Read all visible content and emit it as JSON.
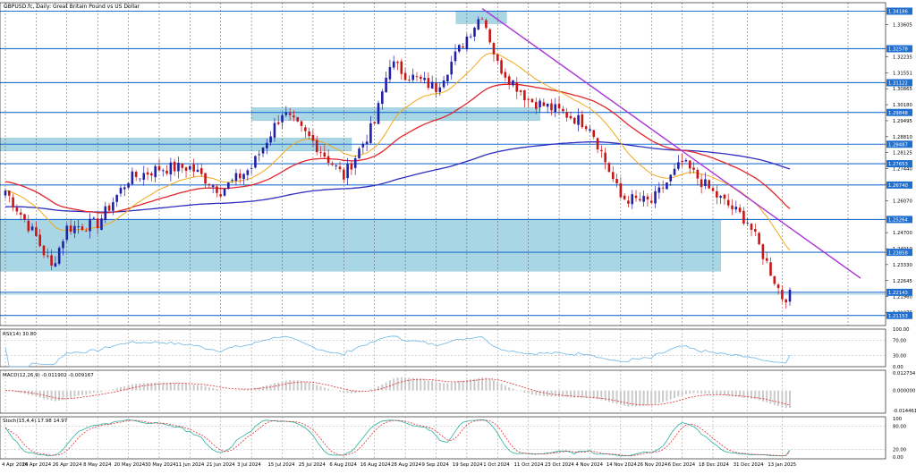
{
  "chart_data": {
    "type": "candlestick",
    "title": "GBPUSD.fc, Daily:  Great Britain Pound vs US Dollar",
    "colors": {
      "bull": "#1f1fa8",
      "bear": "#c81414",
      "zone": "#a9d6e5",
      "hline": "#1f6fd1",
      "ema20": "#f2a81b",
      "ema50": "#e0262b",
      "ema200": "#2d2dbf",
      "trendline": "#a833d6",
      "rsi": "#6fb7e6",
      "macd_hist": "#c9c9c9",
      "macd_signal": "#e03030",
      "stoch_k": "#2ab0a0",
      "stoch_d": "#e03030"
    },
    "y_axis": {
      "ylim": [
        1.2072,
        1.3455
      ],
      "tick_labels": [
        "1.33605",
        "1.32235",
        "1.31551",
        "1.30865",
        "1.30180",
        "1.29495",
        "1.28810",
        "1.28125",
        "1.27440",
        "1.26770",
        "1.26070",
        "1.24700",
        "1.24010",
        "1.23330",
        "1.22645",
        "1.21960",
        "1.21275"
      ]
    },
    "price_labels": [
      "1.34186",
      "1.32578",
      "1.31122",
      "1.29848",
      "1.28487",
      "1.27653",
      "1.26740",
      "1.25264",
      "1.23858",
      "1.22143",
      "1.21153"
    ],
    "x_axis": {
      "tick_labels": [
        "4 Apr 2024",
        "16 Apr 2024",
        "26 Apr 2024",
        "8 May 2024",
        "20 May 2024",
        "30 May 2024",
        "11 Jun 2024",
        "21 Jun 2024",
        "3 Jul 2024",
        "15 Jul 2024",
        "25 Jul 2024",
        "6 Aug 2024",
        "16 Aug 2024",
        "28 Aug 2024",
        "9 Sep 2024",
        "19 Sep 2024",
        "1 Oct 2024",
        "11 Oct 2024",
        "23 Oct 2024",
        "4 Nov 2024",
        "14 Nov 2024",
        "26 Nov 2024",
        "6 Dec 2024",
        "18 Dec 2024",
        "31 Dec 2024",
        "13 Jan 2025"
      ]
    },
    "anchors": [
      {
        "date": "4 Apr 2024",
        "close": 1.265
      },
      {
        "date": "16 Apr 2024",
        "close": 1.245
      },
      {
        "date": "22 Apr 2024",
        "close": 1.232
      },
      {
        "date": "26 Apr 2024",
        "close": 1.249
      },
      {
        "date": "8 May 2024",
        "close": 1.251
      },
      {
        "date": "20 May 2024",
        "close": 1.27
      },
      {
        "date": "30 May 2024",
        "close": 1.2745
      },
      {
        "date": "11 Jun 2024",
        "close": 1.275
      },
      {
        "date": "21 Jun 2024",
        "close": 1.265
      },
      {
        "date": "3 Jul 2024",
        "close": 1.275
      },
      {
        "date": "15 Jul 2024",
        "close": 1.2985
      },
      {
        "date": "25 Jul 2024",
        "close": 1.286
      },
      {
        "date": "6 Aug 2024",
        "close": 1.271
      },
      {
        "date": "16 Aug 2024",
        "close": 1.294
      },
      {
        "date": "22 Aug 2024",
        "close": 1.32
      },
      {
        "date": "28 Aug 2024",
        "close": 1.315
      },
      {
        "date": "9 Sep 2024",
        "close": 1.309
      },
      {
        "date": "19 Sep 2024",
        "close": 1.331
      },
      {
        "date": "25 Sep 2024",
        "close": 1.341
      },
      {
        "date": "1 Oct 2024",
        "close": 1.319
      },
      {
        "date": "11 Oct 2024",
        "close": 1.304
      },
      {
        "date": "23 Oct 2024",
        "close": 1.299
      },
      {
        "date": "4 Nov 2024",
        "close": 1.293
      },
      {
        "date": "14 Nov 2024",
        "close": 1.262
      },
      {
        "date": "26 Nov 2024",
        "close": 1.26
      },
      {
        "date": "6 Dec 2024",
        "close": 1.277
      },
      {
        "date": "18 Dec 2024",
        "close": 1.264
      },
      {
        "date": "31 Dec 2024",
        "close": 1.252
      },
      {
        "date": "13 Jan 2025",
        "close": 1.2195
      },
      {
        "date": "15 Jan 2025",
        "close": 1.22
      }
    ],
    "indicators": {
      "rsi": {
        "label": "RSI(14) 30.80",
        "value": 30.8,
        "ylim": [
          0,
          100
        ],
        "ticks": [
          "100.00",
          "70.00",
          "30.00",
          "0.00"
        ]
      },
      "macd": {
        "label": "MACD(12,26,9) -0.011902 -0.009167",
        "macd": -0.011902,
        "signal": -0.009167,
        "ticks": [
          "0.012734",
          "0.000000",
          "-0.014461"
        ]
      },
      "stoch": {
        "label": "Stoch(15,4,4) 17.98 14.97",
        "k": 17.98,
        "d": 14.97,
        "ticks": [
          "100",
          "80.00",
          "20.00",
          "0.00"
        ]
      }
    }
  }
}
